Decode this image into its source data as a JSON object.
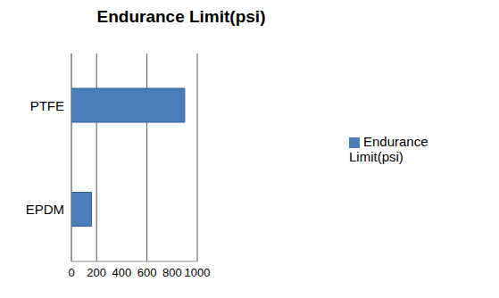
{
  "chart_data": {
    "type": "bar",
    "title": "Endurance Limit(psi)",
    "orientation": "horizontal",
    "categories": [
      "PTFE",
      "EPDM"
    ],
    "series": [
      {
        "name": "Endurance Limit(psi)",
        "color": "#4a7ebb",
        "values": [
          900,
          160
        ]
      }
    ],
    "xlim": [
      0,
      1000
    ],
    "xticks": [
      0,
      200,
      400,
      600,
      800,
      1000
    ],
    "grid": true,
    "legend": "right"
  }
}
